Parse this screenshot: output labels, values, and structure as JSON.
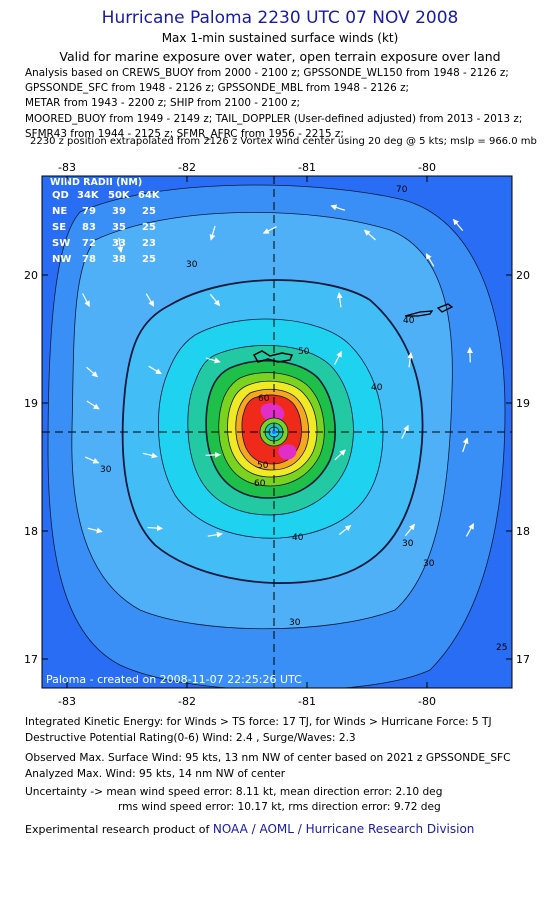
{
  "header": {
    "title": "Hurricane Paloma 2230 UTC 07 NOV 2008",
    "subtitle": "Max 1-min sustained surface winds (kt)",
    "validity": "Valid for marine exposure over water, open terrain exposure over land"
  },
  "analysis_lines": [
    "Analysis based on  CREWS_BUOY from 2000 - 2100 z;  GPSSONDE_WL150 from 1948 - 2126 z;",
    "GPSSONDE_SFC from 1948 - 2126 z;  GPSSONDE_MBL from 1948 - 2126 z;",
    "METAR from 1943 - 2200 z;  SHIP from 2100 - 2100 z;",
    "MOORED_BUOY from 1949 - 2149 z;  TAIL_DOPPLER (User-defined adjusted) from 2013 - 2013 z;",
    "SFMR43 from 1944 - 2125 z;  SFMR_AFRC from 1956 - 2215 z;"
  ],
  "position_line": "2230 z position extrapolated from 2126 z Vortex wind center using 20 deg @ 5 kts; mslp = 966.0 mb",
  "map": {
    "lon_ticks": [
      "-83",
      "-82",
      "-81",
      "-80"
    ],
    "lat_ticks": [
      "20",
      "19",
      "18",
      "17"
    ],
    "wind_radii": {
      "title": "WIND RADII (NM)",
      "header": [
        "QD",
        "34K",
        "50K",
        "64K"
      ],
      "rows": [
        [
          "NE",
          "79",
          "39",
          "25"
        ],
        [
          "SE",
          "83",
          "35",
          "25"
        ],
        [
          "SW",
          "72",
          "33",
          "23"
        ],
        [
          "NW",
          "78",
          "38",
          "25"
        ]
      ]
    },
    "contour_labels": [
      "70",
      "30",
      "40",
      "50",
      "60",
      "40",
      "30",
      "30",
      "30",
      "25",
      "30",
      "40",
      "60",
      "50"
    ],
    "credit": "Paloma - created on 2008-11-07 22:25:26 UTC"
  },
  "chart_data": {
    "type": "heatmap",
    "title": "Hurricane Paloma 2230 UTC 07 NOV 2008",
    "variable": "Max 1-min sustained surface winds (kt)",
    "center": {
      "lon": -81.2,
      "lat": 18.78
    },
    "xlim": [
      -83.3,
      -79.4
    ],
    "ylim": [
      16.8,
      20.8
    ],
    "x_ticks": [
      -83,
      -82,
      -81,
      -80
    ],
    "y_ticks": [
      17,
      18,
      19,
      20
    ],
    "contour_levels_kt": [
      25,
      30,
      34,
      40,
      50,
      60,
      64,
      70,
      80,
      90
    ],
    "max_wind_kt": 95,
    "mslp_mb": 966.0,
    "wind_radii_nm": {
      "NE": {
        "34K": 79,
        "50K": 39,
        "64K": 25
      },
      "SE": {
        "34K": 83,
        "50K": 35,
        "64K": 25
      },
      "SW": {
        "34K": 72,
        "50K": 33,
        "64K": 23
      },
      "NW": {
        "34K": 78,
        "50K": 38,
        "64K": 25
      }
    },
    "colors": {
      "ocean_outer": "#2a6df5",
      "band_25": "#3a8ff7",
      "band_30": "#4fb0f7",
      "band_40": "#1fd3f0",
      "band_50": "#22c9a3",
      "band_60": "#1ec04a",
      "band_64": "#7ad31f",
      "band_70": "#f0ea24",
      "band_80": "#f7a71c",
      "band_90": "#ef2a1a",
      "core": "#e12ec9"
    }
  },
  "footer": {
    "ike": "Integrated Kinetic Energy:  for Winds > TS force: 17 TJ,  for Winds > Hurricane Force: 5 TJ",
    "dpr": "Destructive Potential Rating(0-6)   Wind: 2.4 , Surge/Waves: 2.3",
    "obs_max": "Observed Max. Surface Wind: 95 kts, 13 nm NW of center based on 2021 z GPSSONDE_SFC",
    "analyzed_max": "Analyzed Max. Wind: 95 kts, 14 nm NW of center",
    "uncertainty_1": "Uncertainty -> mean wind speed error: 8.11 kt,   mean direction error: 2.10 deg",
    "uncertainty_2": "rms wind speed error: 10.17 kt,   rms direction error: 9.72 deg",
    "credit_prefix": "Experimental research product of",
    "credit_org": "NOAA / AOML / Hurricane Research Division"
  }
}
